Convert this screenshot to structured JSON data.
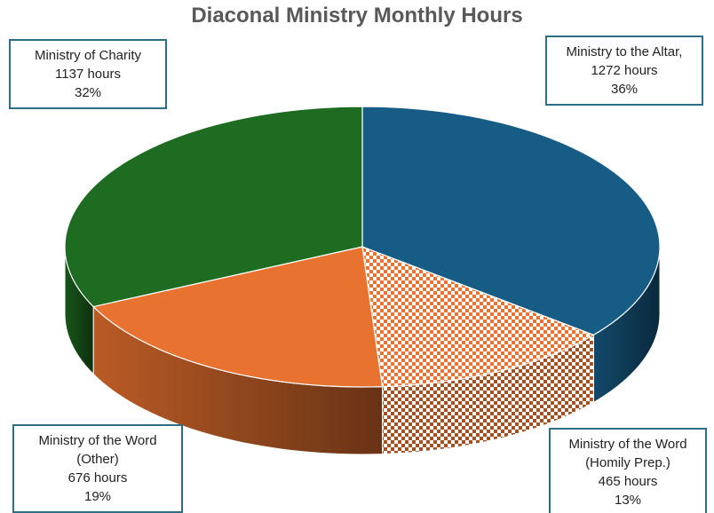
{
  "chart_data": {
    "type": "pie3d",
    "title": "Diaconal Ministry Monthly Hours",
    "categories": [
      "Ministry to the Altar,",
      "Ministry of the Word (Homily Prep.)",
      "Ministry of the Word (Other)",
      "Ministry of Charity"
    ],
    "values": [
      1272,
      465,
      676,
      1137
    ],
    "value_labels": [
      "1272 hours",
      "465 hours",
      "676 hours",
      "1137 hours"
    ],
    "percent_labels": [
      "36%",
      "13%",
      "19%",
      "32%"
    ],
    "colors": [
      "#175c85",
      "#e8722f",
      "#e8722f",
      "#1e6b22"
    ],
    "checkered": [
      false,
      true,
      false,
      false
    ]
  }
}
